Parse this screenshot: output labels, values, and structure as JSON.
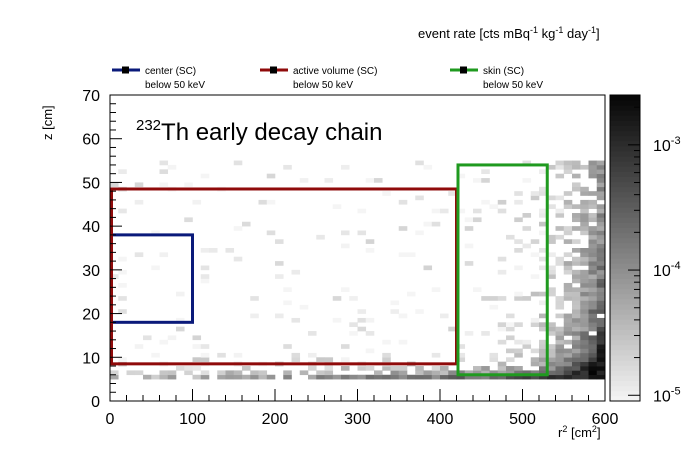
{
  "chart_data": {
    "type": "heatmap",
    "title": "²³²Th early decay chain",
    "title_mass": "232",
    "title_text": "Th early decay chain",
    "xlabel": "r² [cm²]",
    "xlabel_base": "r",
    "xlabel_sup1": "2",
    "xlabel_unit": " [cm",
    "xlabel_sup2": "2",
    "xlabel_end": "]",
    "ylabel": "z [cm]",
    "zlabel": "event rate [cts mBq⁻¹ kg⁻¹ day⁻¹]",
    "zlabel_parts": {
      "a": "event rate [cts mBq",
      "s1": "-1",
      "b": " kg",
      "s2": "-1",
      "c": " day",
      "s3": "-1",
      "d": "]"
    },
    "xlim": [
      0,
      600
    ],
    "ylim": [
      0,
      70
    ],
    "zlog": true,
    "zlim": [
      9e-06,
      0.0025
    ],
    "xticks": [
      "0",
      "100",
      "200",
      "300",
      "400",
      "500",
      "600"
    ],
    "yticks": [
      "0",
      "10",
      "20",
      "30",
      "40",
      "50",
      "60",
      "70"
    ],
    "zticks": [
      {
        "value": 1e-05,
        "base": "10",
        "exp": "-5"
      },
      {
        "value": 0.0001,
        "base": "10",
        "exp": "-4"
      },
      {
        "value": 0.001,
        "base": "10",
        "exp": "-3"
      }
    ],
    "bins": {
      "nx": 60,
      "ny": 70
    },
    "regions": [
      {
        "name": "center (SC)",
        "note": "below 50 keV",
        "color": "#0a1a7a",
        "x": [
          0,
          100
        ],
        "z": [
          18,
          38
        ]
      },
      {
        "name": "active volume (SC)",
        "note": "below 50 keV",
        "color": "#8f0a0a",
        "x": [
          0,
          420
        ],
        "z": [
          8.5,
          48.5
        ]
      },
      {
        "name": "skin (SC)",
        "note": "below 50 keV",
        "color": "#1f9a1f",
        "x": [
          420,
          530
        ],
        "z": [
          6,
          54
        ]
      }
    ],
    "grid": false,
    "legend_position": "top"
  }
}
